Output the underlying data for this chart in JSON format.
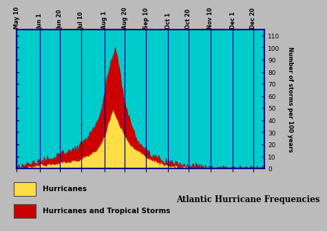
{
  "title": "Atlantic Hurricane Frequencies",
  "ylabel": "Number of storms per 100 years",
  "background_color": "#00CCCC",
  "legend_bg": "#99EEDD",
  "fig_bg": "#BBBBBB",
  "x_tick_labels": [
    "May 10",
    "Jun 1",
    "Jun 20",
    "Jul 10",
    "Aug 1",
    "Aug 20",
    "Sep 10",
    "Oct 1",
    "Oct 20",
    "Nov 10",
    "Dec 1",
    "Dec 20"
  ],
  "x_tick_positions": [
    0,
    22,
    41,
    61,
    83,
    102,
    122,
    143,
    162,
    183,
    204,
    223
  ],
  "ylim": [
    0,
    115
  ],
  "yticks": [
    0,
    10,
    20,
    30,
    40,
    50,
    60,
    70,
    80,
    90,
    100,
    110
  ],
  "legend_labels": [
    "Hurricanes",
    "Hurricanes and Tropical Storms"
  ],
  "legend_colors": [
    "#FFDD44",
    "#DD0000"
  ],
  "total_points": 235,
  "hurricanes": [
    0,
    0,
    0,
    0,
    0,
    0,
    0,
    0,
    0,
    0,
    0,
    1,
    1,
    1,
    1,
    2,
    2,
    2,
    2,
    2,
    2,
    2,
    3,
    3,
    3,
    3,
    3,
    3,
    3,
    3,
    3,
    3,
    3,
    4,
    4,
    4,
    4,
    4,
    4,
    4,
    4,
    5,
    5,
    5,
    5,
    5,
    5,
    5,
    5,
    6,
    6,
    6,
    6,
    6,
    6,
    6,
    6,
    6,
    7,
    7,
    7,
    8,
    8,
    9,
    9,
    10,
    10,
    11,
    11,
    12,
    12,
    13,
    13,
    14,
    15,
    15,
    16,
    17,
    18,
    19,
    21,
    23,
    25,
    27,
    30,
    33,
    36,
    39,
    41,
    44,
    47,
    48,
    46,
    44,
    42,
    40,
    38,
    36,
    34,
    32,
    30,
    28,
    26,
    25,
    23,
    22,
    21,
    20,
    19,
    18,
    17,
    17,
    16,
    15,
    15,
    14,
    13,
    13,
    12,
    12,
    11,
    10,
    10,
    9,
    9,
    8,
    8,
    8,
    7,
    7,
    6,
    6,
    5,
    5,
    5,
    4,
    4,
    4,
    3,
    3,
    3,
    3,
    2,
    2,
    2,
    2,
    2,
    2,
    2,
    2,
    2,
    1,
    1,
    1,
    1,
    1,
    1,
    1,
    1,
    1,
    1,
    1,
    1,
    1,
    0,
    0,
    0,
    0,
    0,
    0,
    0,
    0,
    0,
    0,
    0,
    0,
    0,
    0,
    0,
    0,
    0,
    0,
    0,
    0,
    0,
    0,
    0,
    0,
    0,
    0,
    0,
    0,
    0,
    0,
    0,
    0,
    0,
    0,
    0,
    0,
    0,
    0,
    0,
    0,
    0,
    0,
    0,
    0,
    0,
    0,
    0,
    0,
    0,
    0,
    0,
    0,
    0,
    0,
    0,
    0,
    0,
    0,
    0,
    0,
    0,
    0,
    0,
    0,
    0,
    0,
    0,
    0,
    0,
    0,
    0
  ],
  "total_storms": [
    1,
    1,
    2,
    2,
    2,
    2,
    2,
    3,
    3,
    3,
    3,
    4,
    4,
    4,
    4,
    5,
    5,
    5,
    5,
    5,
    6,
    6,
    7,
    7,
    7,
    7,
    8,
    8,
    8,
    9,
    9,
    9,
    10,
    10,
    10,
    11,
    11,
    11,
    12,
    12,
    12,
    13,
    13,
    13,
    13,
    14,
    14,
    14,
    15,
    15,
    16,
    16,
    16,
    17,
    17,
    17,
    17,
    17,
    18,
    18,
    19,
    20,
    20,
    22,
    23,
    24,
    25,
    26,
    27,
    29,
    30,
    32,
    33,
    35,
    37,
    38,
    40,
    42,
    44,
    47,
    50,
    54,
    58,
    63,
    68,
    73,
    78,
    82,
    85,
    88,
    90,
    92,
    96,
    100,
    97,
    92,
    88,
    82,
    76,
    70,
    65,
    60,
    56,
    52,
    48,
    45,
    42,
    39,
    36,
    33,
    31,
    29,
    27,
    25,
    24,
    22,
    21,
    20,
    19,
    18,
    17,
    16,
    15,
    15,
    14,
    13,
    12,
    12,
    11,
    11,
    10,
    10,
    9,
    9,
    9,
    8,
    8,
    7,
    7,
    6,
    6,
    6,
    5,
    5,
    5,
    5,
    5,
    4,
    4,
    4,
    4,
    4,
    3,
    3,
    3,
    3,
    3,
    3,
    3,
    2,
    2,
    2,
    2,
    2,
    2,
    2,
    2,
    2,
    2,
    2,
    2,
    2,
    2,
    2,
    1,
    1,
    1,
    1,
    1,
    1,
    1,
    1,
    1,
    1,
    0,
    0,
    0,
    0,
    0,
    0,
    0,
    0,
    0,
    0,
    0,
    0,
    0,
    0,
    0,
    0,
    0,
    0,
    0,
    0,
    0,
    0,
    0,
    0,
    0,
    0,
    0,
    0,
    0,
    0,
    0,
    0,
    0,
    0,
    0,
    0,
    0,
    0,
    0,
    0,
    0,
    0,
    0,
    0,
    0,
    0,
    0,
    0,
    0,
    0,
    0
  ]
}
